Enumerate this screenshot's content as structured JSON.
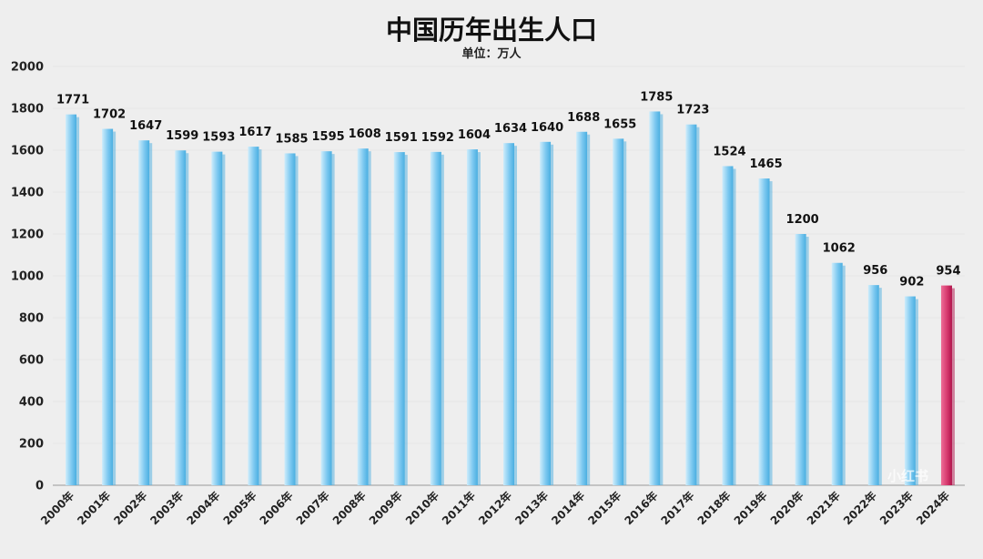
{
  "chart_data": {
    "type": "bar",
    "title": "中国历年出生人口",
    "subtitle": "单位：万人",
    "categories": [
      "2000年",
      "2001年",
      "2002年",
      "2003年",
      "2004年",
      "2005年",
      "2006年",
      "2007年",
      "2008年",
      "2009年",
      "2010年",
      "2011年",
      "2012年",
      "2013年",
      "2014年",
      "2015年",
      "2016年",
      "2017年",
      "2018年",
      "2019年",
      "2020年",
      "2021年",
      "2022年",
      "2023年",
      "2024年"
    ],
    "values": [
      1771,
      1702,
      1647,
      1599,
      1593,
      1617,
      1585,
      1595,
      1608,
      1591,
      1592,
      1604,
      1634,
      1640,
      1688,
      1655,
      1785,
      1723,
      1524,
      1465,
      1200,
      1062,
      956,
      902,
      954
    ],
    "data_labels": [
      "1771",
      "1702",
      "1647",
      "1599",
      "1593",
      "1617",
      "1585",
      "1595",
      "1608",
      "1591",
      "1592",
      "1604",
      "1634",
      "1640",
      "1688",
      "1655",
      "1785",
      "1723",
      "1524",
      "1465",
      "1200",
      "1062",
      "956",
      "902",
      "954"
    ],
    "ylim": [
      0,
      2000
    ],
    "yticks": [
      0,
      200,
      400,
      600,
      800,
      1000,
      1200,
      1400,
      1600,
      1800,
      2000
    ],
    "grid": true,
    "legend": "none",
    "colors": {
      "bar_main": "#7cc8f0",
      "bar_light": "#cdecfb",
      "bar_shade": "#4aaee0",
      "highlight_main": "#d63a6e",
      "highlight_light": "#ee6f98",
      "highlight_shade": "#b0124a",
      "highlight_index": 24
    }
  },
  "watermark": {
    "text": "小红书"
  }
}
